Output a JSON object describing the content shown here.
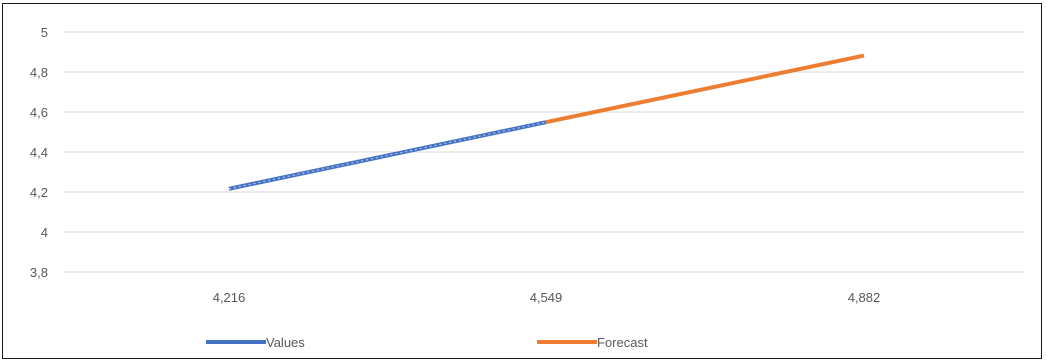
{
  "chart_data": {
    "type": "line",
    "categories": [
      "4,216",
      "4,549",
      "4,882"
    ],
    "x": [
      4.216,
      4.549,
      4.882
    ],
    "ylim": [
      3.8,
      5
    ],
    "yticks": [
      3.8,
      4,
      4.2,
      4.4,
      4.6,
      4.8,
      5
    ],
    "ytick_labels": [
      "3,8",
      "4",
      "4,2",
      "4,4",
      "4,6",
      "4,8",
      "5"
    ],
    "grid": true,
    "legend_position": "bottom",
    "series": [
      {
        "name": "Values",
        "color": "#4472C4",
        "x": [
          4.216,
          4.549
        ],
        "values": [
          4.216,
          4.549
        ]
      },
      {
        "name": "Forecast",
        "color": "#ED7D31",
        "x": [
          4.549,
          4.882
        ],
        "values": [
          4.549,
          4.882
        ]
      }
    ]
  }
}
